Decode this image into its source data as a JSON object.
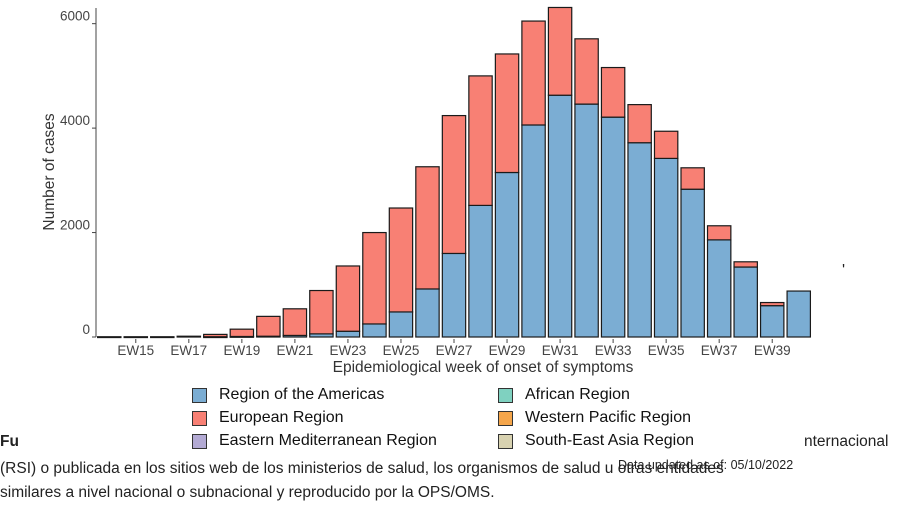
{
  "chart_data": {
    "type": "bar",
    "stacked": true,
    "xlabel": "Epidemiological week of onset of symptoms",
    "ylabel": "Number of cases",
    "ylim": [
      0,
      6300
    ],
    "yticks": [
      0,
      2000,
      4000,
      6000
    ],
    "categories": [
      "EW14",
      "EW15",
      "EW16",
      "EW17",
      "EW18",
      "EW19",
      "EW20",
      "EW21",
      "EW22",
      "EW23",
      "EW24",
      "EW25",
      "EW26",
      "EW27",
      "EW28",
      "EW29",
      "EW30",
      "EW31",
      "EW32",
      "EW33",
      "EW34",
      "EW35",
      "EW36",
      "EW37",
      "EW38",
      "EW39",
      "EW40"
    ],
    "tick_labels": [
      "EW15",
      "EW17",
      "EW19",
      "EW21",
      "EW23",
      "EW25",
      "EW27",
      "EW29",
      "EW31",
      "EW33",
      "EW35",
      "EW37",
      "EW39"
    ],
    "series": [
      {
        "name": "Region of the Americas",
        "color": "#7badd3",
        "values": [
          0,
          0,
          0,
          0,
          5,
          10,
          15,
          30,
          60,
          110,
          250,
          480,
          920,
          1600,
          2520,
          3150,
          4060,
          4630,
          4460,
          4210,
          3720,
          3420,
          2830,
          1860,
          1340,
          600,
          880
        ]
      },
      {
        "name": "European Region",
        "color": "#f88074",
        "values": [
          5,
          5,
          5,
          15,
          45,
          140,
          380,
          510,
          830,
          1250,
          1750,
          1990,
          2340,
          2640,
          2480,
          2270,
          1990,
          1680,
          1250,
          950,
          730,
          520,
          410,
          270,
          100,
          60,
          0
        ]
      },
      {
        "name": "Eastern Mediterranean Region",
        "color": "#b3aad4",
        "values": [
          0,
          0,
          0,
          0,
          0,
          0,
          0,
          0,
          0,
          0,
          0,
          0,
          0,
          0,
          0,
          0,
          0,
          0,
          0,
          0,
          0,
          0,
          0,
          0,
          0,
          0,
          0
        ]
      },
      {
        "name": "African Region",
        "color": "#7fd1c0",
        "values": [
          0,
          0,
          0,
          0,
          0,
          0,
          0,
          0,
          0,
          0,
          0,
          0,
          0,
          0,
          0,
          0,
          0,
          0,
          0,
          0,
          0,
          0,
          0,
          0,
          0,
          0,
          0
        ]
      },
      {
        "name": "Western Pacific Region",
        "color": "#f5a64b",
        "values": [
          0,
          0,
          0,
          0,
          0,
          0,
          0,
          0,
          0,
          0,
          0,
          0,
          0,
          0,
          0,
          0,
          0,
          0,
          0,
          0,
          0,
          0,
          0,
          0,
          0,
          0,
          0
        ]
      },
      {
        "name": "South-East Asia Region",
        "color": "#d8d2b0",
        "values": [
          0,
          0,
          0,
          0,
          0,
          0,
          0,
          0,
          0,
          0,
          0,
          0,
          0,
          0,
          0,
          0,
          0,
          0,
          0,
          0,
          0,
          0,
          0,
          0,
          0,
          0,
          0
        ]
      }
    ],
    "legend_placement": "bottom"
  },
  "updated_text": "Data updated as of: 05/10/2022",
  "background_text": {
    "prefix": "Fu",
    "right": "nternacional",
    "side_mark": "'",
    "line1": "(RSI) o publicada en los sitios web de los ministerios de salud, los organismos de salud u otras entidades",
    "line2": "similares a nivel nacional o subnacional y reproducido por la OPS/OMS."
  }
}
